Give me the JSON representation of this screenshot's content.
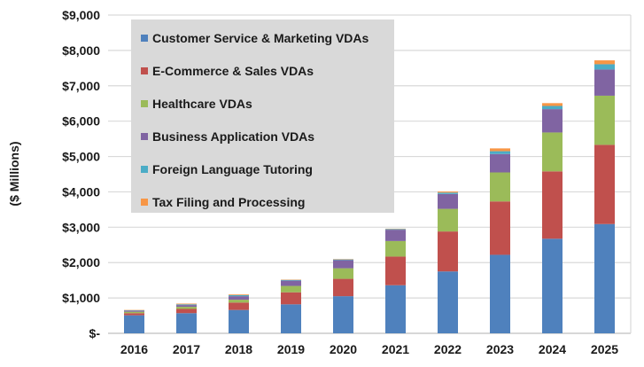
{
  "chart_data": {
    "type": "bar",
    "stacked": true,
    "title": "",
    "xlabel": "",
    "ylabel": "($ Millions)",
    "ylim": [
      0,
      9000
    ],
    "yticks": [
      0,
      1000,
      2000,
      3000,
      4000,
      5000,
      6000,
      7000,
      8000,
      9000
    ],
    "ytick_labels": [
      "$-",
      "$1,000",
      "$2,000",
      "$3,000",
      "$4,000",
      "$5,000",
      "$6,000",
      "$7,000",
      "$8,000",
      "$9,000"
    ],
    "grid": true,
    "legend_position": "top-left",
    "categories": [
      "2016",
      "2017",
      "2018",
      "2019",
      "2020",
      "2021",
      "2022",
      "2023",
      "2024",
      "2025"
    ],
    "series": [
      {
        "name": "Customer Service & Marketing VDAs",
        "color": "#4f81bd",
        "values": [
          510,
          570,
          660,
          820,
          1050,
          1360,
          1750,
          2220,
          2675,
          3090
        ]
      },
      {
        "name": "E-Commerce & Sales VDAs",
        "color": "#c0504d",
        "values": [
          60,
          120,
          210,
          340,
          490,
          810,
          1130,
          1510,
          1905,
          2240
        ]
      },
      {
        "name": "Healthcare VDAs",
        "color": "#9bbb59",
        "values": [
          40,
          60,
          80,
          180,
          300,
          440,
          640,
          820,
          1100,
          1390
        ]
      },
      {
        "name": "Business Application VDAs",
        "color": "#8064a2",
        "values": [
          30,
          50,
          100,
          150,
          230,
          320,
          420,
          520,
          660,
          740
        ]
      },
      {
        "name": "Foreign Language Tutoring",
        "color": "#4bacc6",
        "values": [
          10,
          20,
          30,
          20,
          20,
          20,
          40,
          80,
          90,
          150
        ]
      },
      {
        "name": "Tax Filing and Processing",
        "color": "#f79646",
        "values": [
          10,
          20,
          20,
          10,
          10,
          10,
          30,
          80,
          80,
          110
        ]
      }
    ]
  }
}
